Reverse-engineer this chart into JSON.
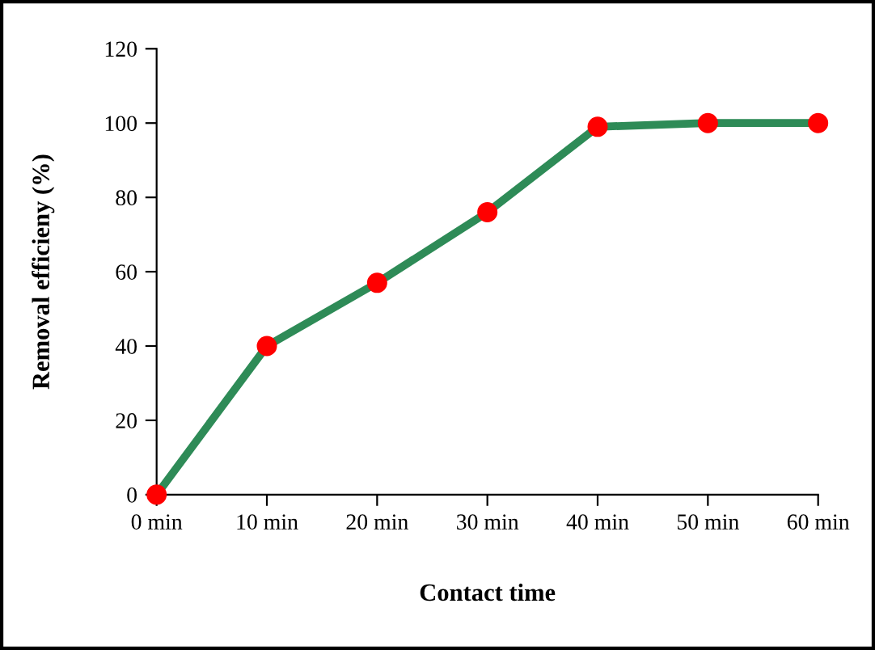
{
  "chart_data": {
    "type": "line",
    "xlabel": "Contact time",
    "ylabel": "Removal efficieny (%)",
    "categories": [
      "0 min",
      "10 min",
      "20 min",
      "30 min",
      "40 min",
      "50 min",
      "60 min"
    ],
    "series": [
      {
        "color": "#2e8b57",
        "values": [
          0,
          40,
          57,
          76,
          99,
          100,
          100
        ]
      }
    ],
    "marker": "circle",
    "line_style": "solid",
    "ylim": [
      0,
      120
    ],
    "yticks": [
      0,
      20,
      40,
      60,
      80,
      100,
      120
    ]
  }
}
